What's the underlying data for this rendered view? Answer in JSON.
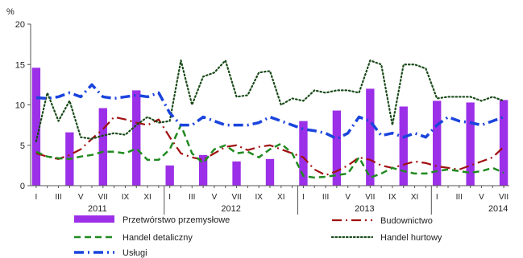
{
  "chart_data": {
    "type": "line",
    "ylabel": "%",
    "ylim": [
      0,
      20
    ],
    "yticks": [
      0,
      5,
      10,
      15,
      20
    ],
    "grid": false,
    "legend_position": "bottom",
    "x_months": 43,
    "x_tick_labels": [
      "I",
      "III",
      "V",
      "VII",
      "IX",
      "XI",
      "I",
      "III",
      "V",
      "VII",
      "IX",
      "XI",
      "I",
      "III",
      "V",
      "VII",
      "IX",
      "XI",
      "I",
      "III",
      "V",
      "VII"
    ],
    "year_labels": [
      {
        "label": "2011",
        "month_index": 5.5
      },
      {
        "label": "2012",
        "month_index": 17.5
      },
      {
        "label": "2013",
        "month_index": 29.5
      },
      {
        "label": "2014",
        "month_index": 41.5
      }
    ],
    "bars": {
      "name": "Przetwórstwo przemysłowe",
      "color": "#9B30E8",
      "points": [
        [
          0,
          14.6
        ],
        [
          3,
          6.6
        ],
        [
          6,
          9.6
        ],
        [
          9,
          11.8
        ],
        [
          12,
          2.5
        ],
        [
          15,
          3.8
        ],
        [
          18,
          3.0
        ],
        [
          21,
          3.3
        ],
        [
          24,
          8.0
        ],
        [
          27,
          9.3
        ],
        [
          30,
          12.0
        ],
        [
          33,
          9.8
        ],
        [
          36,
          10.5
        ],
        [
          39,
          10.3
        ],
        [
          42,
          10.6
        ]
      ]
    },
    "series": [
      {
        "name": "Budownictwo",
        "color": "#A01010",
        "style": "dashdot",
        "values": [
          4.0,
          3.6,
          3.3,
          3.8,
          4.5,
          5.8,
          7.0,
          8.5,
          8.2,
          7.8,
          7.5,
          8.2,
          6.0,
          4.0,
          3.5,
          3.2,
          4.0,
          4.8,
          5.0,
          4.4,
          4.8,
          5.0,
          4.5,
          4.0,
          3.5,
          2.0,
          1.3,
          1.8,
          2.5,
          3.5,
          3.2,
          2.5,
          2.2,
          2.6,
          3.0,
          2.8,
          2.4,
          2.2,
          2.0,
          2.5,
          3.0,
          3.5,
          4.8
        ]
      },
      {
        "name": "Handel detaliczny",
        "color": "#208A20",
        "style": "dashed",
        "values": [
          4.2,
          3.6,
          3.4,
          3.3,
          3.6,
          3.8,
          4.2,
          4.2,
          4.0,
          4.6,
          3.2,
          3.2,
          4.5,
          7.5,
          4.0,
          2.8,
          4.5,
          5.0,
          4.0,
          4.2,
          3.5,
          4.5,
          5.2,
          4.0,
          1.2,
          1.0,
          1.1,
          1.3,
          1.5,
          3.5,
          1.0,
          1.5,
          2.2,
          1.8,
          1.5,
          1.5,
          1.8,
          2.0,
          1.8,
          1.6,
          1.8,
          2.2,
          1.6
        ]
      },
      {
        "name": "Handel hurtowy",
        "color": "#1A4A1A",
        "style": "dotted",
        "values": [
          5.5,
          11.5,
          8.0,
          10.5,
          6.0,
          5.8,
          6.2,
          6.5,
          6.3,
          7.5,
          8.5,
          7.8,
          8.0,
          15.5,
          10.0,
          13.5,
          14.0,
          15.5,
          11.0,
          11.2,
          14.0,
          14.2,
          10.0,
          10.8,
          10.5,
          11.8,
          11.5,
          11.8,
          11.8,
          11.5,
          15.5,
          15.0,
          7.5,
          15.0,
          15.0,
          14.5,
          10.8,
          11.0,
          11.0,
          11.0,
          10.5,
          11.0,
          10.5
        ]
      },
      {
        "name": "Usługi",
        "color": "#1A44DD",
        "style": "dashdot",
        "values": [
          10.9,
          10.8,
          11.0,
          11.5,
          11.0,
          12.5,
          11.0,
          10.8,
          11.0,
          11.2,
          11.0,
          11.5,
          9.0,
          7.5,
          7.5,
          8.5,
          8.0,
          7.5,
          7.5,
          7.5,
          7.8,
          8.5,
          8.0,
          7.5,
          7.0,
          6.8,
          6.5,
          5.8,
          6.5,
          8.5,
          8.0,
          6.2,
          6.5,
          6.0,
          6.5,
          6.0,
          7.5,
          8.5,
          8.0,
          7.8,
          7.5,
          8.0,
          8.5
        ]
      }
    ]
  }
}
